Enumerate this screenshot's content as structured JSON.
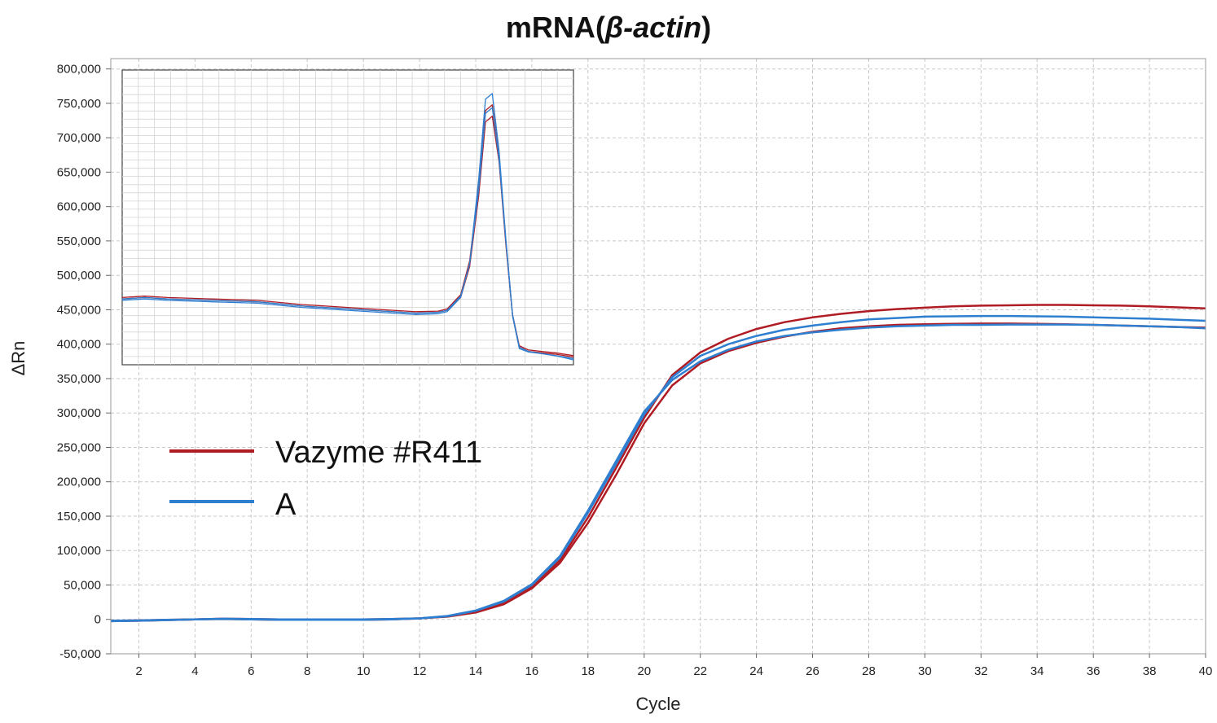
{
  "chart_data": {
    "type": "line",
    "title": {
      "prefix": "mRNA(",
      "italic": "β-actin",
      "suffix": ")"
    },
    "xlabel": "Cycle",
    "ylabel": "ΔRn",
    "xlim": [
      1,
      40
    ],
    "ylim": [
      -50000,
      815000
    ],
    "x_ticks": [
      2,
      4,
      6,
      8,
      10,
      12,
      14,
      16,
      18,
      20,
      22,
      24,
      26,
      28,
      30,
      32,
      34,
      36,
      38,
      40
    ],
    "x_tick_labels": [
      "2",
      "4",
      "6",
      "8",
      "10",
      "12",
      "14",
      "16",
      "18",
      "20",
      "22",
      "24",
      "26",
      "28",
      "30",
      "32",
      "34",
      "36",
      "38",
      "40"
    ],
    "y_ticks": [
      -50000,
      0,
      50000,
      100000,
      150000,
      200000,
      250000,
      300000,
      350000,
      400000,
      450000,
      500000,
      550000,
      600000,
      650000,
      700000,
      750000,
      800000
    ],
    "y_tick_labels": [
      "-50,000",
      "0",
      "50,000",
      "100,000",
      "150,000",
      "200,000",
      "250,000",
      "300,000",
      "350,000",
      "400,000",
      "450,000",
      "500,000",
      "550,000",
      "600,000",
      "650,000",
      "700,000",
      "750,000",
      "800,000"
    ],
    "grid": true,
    "legend": {
      "placement": "center-left",
      "entries": [
        {
          "label": "Vazyme #R411",
          "color": "#b01c24"
        },
        {
          "label": "A",
          "color": "#2f7fd0"
        }
      ]
    },
    "colors": {
      "red": "#b01c24",
      "blue": "#2f7fd0"
    },
    "x": [
      1,
      2,
      3,
      4,
      5,
      6,
      7,
      8,
      9,
      10,
      11,
      12,
      13,
      14,
      15,
      16,
      17,
      18,
      19,
      20,
      21,
      22,
      23,
      24,
      25,
      26,
      27,
      28,
      29,
      30,
      31,
      32,
      33,
      34,
      35,
      36,
      37,
      38,
      39,
      40
    ],
    "series": [
      {
        "color": "red",
        "values": [
          -2000,
          -1500,
          -500,
          0,
          1000,
          500,
          0,
          0,
          0,
          0,
          500,
          1500,
          4000,
          10000,
          22000,
          45000,
          82000,
          140000,
          210000,
          285000,
          340000,
          372000,
          390000,
          402000,
          411000,
          418000,
          423000,
          426000,
          428000,
          429000,
          429500,
          430000,
          430000,
          429500,
          429000,
          428000,
          427000,
          426000,
          425000,
          424000
        ]
      },
      {
        "color": "red",
        "values": [
          -2500,
          -2000,
          -1000,
          0,
          500,
          0,
          -500,
          -500,
          -500,
          -500,
          0,
          1500,
          4500,
          11500,
          24000,
          47000,
          86000,
          148000,
          220000,
          293000,
          355000,
          388000,
          408000,
          422000,
          432000,
          439000,
          444000,
          448000,
          451000,
          453000,
          455000,
          456000,
          456500,
          457000,
          457000,
          456500,
          456000,
          455000,
          453500,
          452000
        ]
      },
      {
        "color": "blue",
        "values": [
          -2000,
          -1500,
          -500,
          0,
          1000,
          500,
          0,
          0,
          0,
          0,
          500,
          1500,
          5000,
          13000,
          27000,
          51000,
          92000,
          158000,
          230000,
          302000,
          348000,
          375000,
          392000,
          404000,
          412000,
          417000,
          421000,
          424000,
          426000,
          427000,
          428000,
          428000,
          428500,
          428500,
          428500,
          428000,
          427000,
          426000,
          425000,
          423000
        ]
      },
      {
        "color": "blue",
        "values": [
          -2500,
          -2000,
          -1000,
          0,
          500,
          0,
          -500,
          -500,
          -500,
          -500,
          0,
          1500,
          4500,
          12500,
          26000,
          50000,
          90000,
          155000,
          226000,
          298000,
          352000,
          383000,
          400000,
          412000,
          421000,
          427000,
          432000,
          436000,
          438000,
          440000,
          440500,
          441000,
          441000,
          440500,
          440000,
          439000,
          438000,
          437000,
          435500,
          434000
        ]
      }
    ],
    "inset": {
      "type": "line",
      "grid": true,
      "xlim": [
        0,
        100
      ],
      "ylim": [
        0,
        100
      ],
      "series": [
        {
          "color": "red",
          "x": [
            0,
            5,
            10,
            20,
            30,
            40,
            50,
            60,
            65,
            70,
            72,
            75,
            77,
            79,
            80.5,
            82,
            83.5,
            85,
            86.5,
            88,
            90,
            93,
            96,
            100
          ],
          "y": [
            22,
            22.5,
            22,
            21.5,
            21,
            19.5,
            18.5,
            17.5,
            17,
            17.2,
            18,
            23,
            35,
            62,
            88,
            90,
            72,
            42,
            16,
            5,
            3.5,
            3,
            2.5,
            1.5
          ]
        },
        {
          "color": "red",
          "x": [
            0,
            5,
            10,
            20,
            30,
            40,
            50,
            60,
            65,
            70,
            72,
            75,
            77,
            79,
            80.5,
            82,
            83.5,
            85,
            86.5,
            88,
            90,
            93,
            96,
            100
          ],
          "y": [
            21.5,
            22,
            21.5,
            21,
            20.5,
            19,
            18,
            17,
            16.5,
            16.8,
            17.5,
            22,
            33,
            58,
            84,
            86,
            70,
            41,
            15.5,
            4.5,
            3,
            2.5,
            2,
            1
          ]
        },
        {
          "color": "blue",
          "x": [
            0,
            5,
            10,
            20,
            30,
            40,
            50,
            60,
            65,
            70,
            72,
            75,
            77,
            79,
            80.5,
            82,
            83.5,
            85,
            86.5,
            88,
            90,
            93,
            96,
            100
          ],
          "y": [
            21,
            21.5,
            21,
            20.5,
            20,
            18.5,
            17.5,
            16.5,
            16,
            16.3,
            17,
            22,
            34,
            64,
            92,
            94,
            74,
            43,
            16,
            4.5,
            3,
            2.2,
            1.5,
            0
          ]
        },
        {
          "color": "blue",
          "x": [
            0,
            5,
            10,
            20,
            30,
            40,
            50,
            60,
            65,
            70,
            72,
            75,
            77,
            79,
            80.5,
            82,
            83.5,
            85,
            86.5,
            88,
            90,
            93,
            96,
            100
          ],
          "y": [
            21.5,
            22,
            21.5,
            21,
            20.5,
            19,
            18,
            17,
            16.5,
            16.8,
            17.5,
            22.5,
            34,
            60,
            87,
            89,
            71,
            42,
            15.5,
            4,
            2.8,
            2.2,
            1.5,
            0.5
          ]
        }
      ]
    }
  }
}
